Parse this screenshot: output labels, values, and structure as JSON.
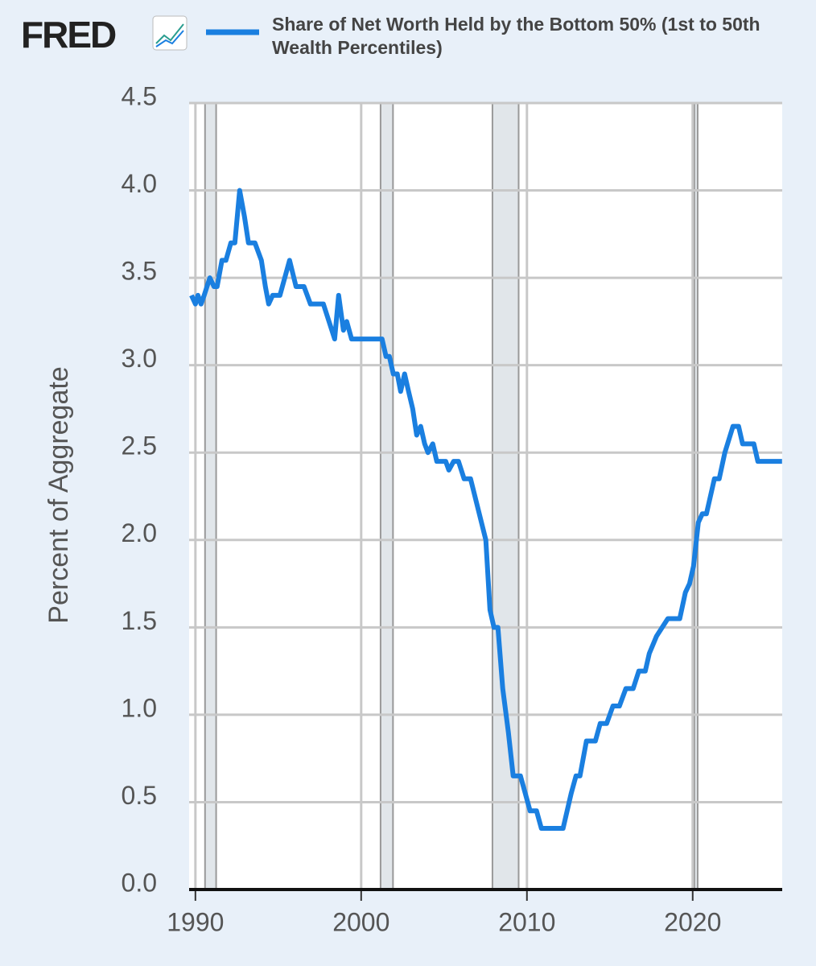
{
  "chart_data": {
    "type": "line",
    "logo": "FRED",
    "y_label": "Percent of Aggregate",
    "x": [
      1989.76,
      1990.0,
      1990.15,
      1990.34,
      1990.53,
      1990.87,
      1991.12,
      1991.31,
      1991.6,
      1991.84,
      1992.14,
      1992.38,
      1992.67,
      1992.96,
      1993.2,
      1993.59,
      1993.98,
      1994.22,
      1994.42,
      1994.66,
      1995.1,
      1995.68,
      1996.07,
      1996.55,
      1996.94,
      1997.72,
      1998.06,
      1998.4,
      1998.64,
      1998.93,
      1999.13,
      1999.42,
      2001.26,
      2001.5,
      2001.7,
      2001.94,
      2002.18,
      2002.38,
      2002.62,
      2002.86,
      2003.11,
      2003.35,
      2003.59,
      2003.83,
      2004.03,
      2004.32,
      2004.56,
      2005.1,
      2005.29,
      2005.58,
      2005.87,
      2006.21,
      2006.6,
      2007.52,
      2007.77,
      2008.01,
      2008.25,
      2008.54,
      2008.88,
      2009.17,
      2009.61,
      2009.9,
      2010.19,
      2010.58,
      2010.87,
      2012.18,
      2012.67,
      2012.96,
      2013.2,
      2013.59,
      2014.13,
      2014.42,
      2014.81,
      2015.19,
      2015.58,
      2015.97,
      2016.41,
      2016.75,
      2017.14,
      2017.38,
      2017.82,
      2018.16,
      2018.5,
      2019.22,
      2019.56,
      2019.81,
      2020.05,
      2020.34,
      2020.58,
      2020.83,
      2021.31,
      2021.6,
      2021.94,
      2022.43,
      2022.77,
      2023.01,
      2023.69,
      2023.93,
      2025.39
    ],
    "series": [
      {
        "name": "Share of Net Worth Held by the Bottom 50% (1st to 50th Wealth Percentiles)",
        "color": "#1a7fe0",
        "values": [
          3.4,
          3.35,
          3.4,
          3.35,
          3.4,
          3.5,
          3.45,
          3.45,
          3.6,
          3.6,
          3.7,
          3.7,
          4.0,
          3.85,
          3.7,
          3.7,
          3.6,
          3.45,
          3.35,
          3.4,
          3.4,
          3.6,
          3.45,
          3.45,
          3.35,
          3.35,
          3.25,
          3.15,
          3.4,
          3.2,
          3.25,
          3.15,
          3.15,
          3.05,
          3.05,
          2.95,
          2.95,
          2.85,
          2.95,
          2.85,
          2.75,
          2.6,
          2.65,
          2.55,
          2.5,
          2.55,
          2.45,
          2.45,
          2.4,
          2.45,
          2.45,
          2.35,
          2.35,
          2.0,
          1.6,
          1.5,
          1.5,
          1.15,
          0.9,
          0.65,
          0.65,
          0.55,
          0.45,
          0.45,
          0.35,
          0.35,
          0.55,
          0.65,
          0.65,
          0.85,
          0.85,
          0.95,
          0.95,
          1.05,
          1.05,
          1.15,
          1.15,
          1.25,
          1.25,
          1.35,
          1.45,
          1.5,
          1.55,
          1.55,
          1.7,
          1.75,
          1.85,
          2.1,
          2.15,
          2.15,
          2.35,
          2.35,
          2.5,
          2.65,
          2.65,
          2.55,
          2.55,
          2.45,
          2.45
        ]
      }
    ],
    "recessions": [
      [
        1990.58,
        1991.25
      ],
      [
        2001.17,
        2001.92
      ],
      [
        2007.92,
        2009.5
      ],
      [
        2020.1,
        2020.3
      ]
    ],
    "recession_color": "#e1e6ea",
    "xlim": [
      1989.62,
      2025.4
    ],
    "xticks": [
      1990,
      2000,
      2010,
      2020
    ],
    "ylim": [
      0,
      4.5
    ],
    "yticks": [
      {
        "value": 0,
        "label": "0.0"
      },
      0.5,
      {
        "value": 1,
        "label": "1.0"
      },
      1.5,
      {
        "value": 2,
        "label": "2.0"
      },
      2.5,
      {
        "value": 3,
        "label": "3.0"
      },
      3.5,
      {
        "value": 4,
        "label": "4.0"
      },
      4.5
    ],
    "grid": true
  }
}
